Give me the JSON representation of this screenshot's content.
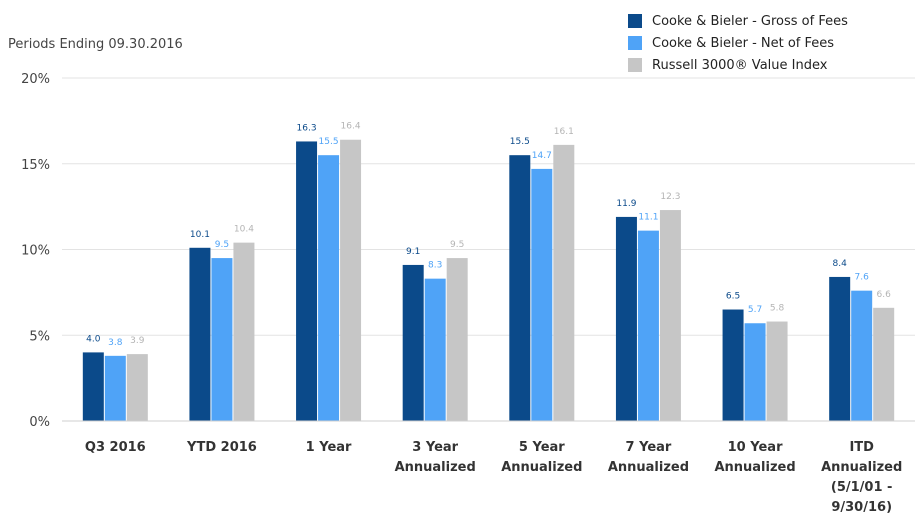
{
  "subtitle": "Periods Ending 09.30.2016",
  "colors": {
    "gross": "#0b4a8a",
    "net": "#4fa3f7",
    "index": "#c6c6c6"
  },
  "chart_data": {
    "type": "bar",
    "title": "",
    "xlabel": "",
    "ylabel": "",
    "ylim": [
      0,
      20
    ],
    "yticks": [
      "0%",
      "5%",
      "10%",
      "15%",
      "20%"
    ],
    "grid": true,
    "legend_position": "top-right",
    "categories": [
      [
        "Q3 2016"
      ],
      [
        "YTD 2016"
      ],
      [
        "1 Year"
      ],
      [
        "3 Year",
        "Annualized"
      ],
      [
        "5 Year",
        "Annualized"
      ],
      [
        "7 Year",
        "Annualized"
      ],
      [
        "10 Year",
        "Annualized"
      ],
      [
        "ITD",
        "Annualized",
        "(5/1/01 -",
        "9/30/16)"
      ]
    ],
    "series": [
      {
        "name": "Cooke & Bieler - Gross of Fees",
        "color": "#0b4a8a",
        "label_color": "#0b4a8a",
        "values": [
          4.0,
          10.1,
          16.3,
          9.1,
          15.5,
          11.9,
          6.5,
          8.4
        ],
        "labels": [
          "4.0",
          "10.1",
          "16.3",
          "9.1",
          "15.5",
          "11.9",
          "6.5",
          "8.4"
        ]
      },
      {
        "name": "Cooke & Bieler - Net of Fees",
        "color": "#4fa3f7",
        "label_color": "#4fa3f7",
        "values": [
          3.8,
          9.5,
          15.5,
          8.3,
          14.7,
          11.1,
          5.7,
          7.6
        ],
        "labels": [
          "3.8",
          "9.5",
          "15.5",
          "8.3",
          "14.7",
          "11.1",
          "5.7",
          "7.6"
        ]
      },
      {
        "name": "Russell 3000® Value Index",
        "color": "#c6c6c6",
        "label_color": "#b4b4b4",
        "values": [
          3.9,
          10.4,
          16.4,
          9.5,
          16.1,
          12.3,
          5.8,
          6.6
        ],
        "labels": [
          "3.9",
          "10.4",
          "16.4",
          "9.5",
          "16.1",
          "12.3",
          "5.8",
          "6.6"
        ]
      }
    ]
  }
}
